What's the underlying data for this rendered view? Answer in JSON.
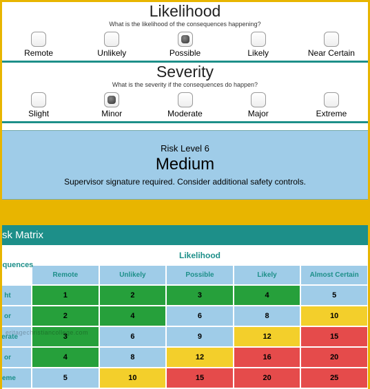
{
  "likelihood": {
    "title": "Likelihood",
    "subtitle": "What is the likelihood of the consequences happening?",
    "options": [
      "Remote",
      "Unlikely",
      "Possible",
      "Likely",
      "Near Certain"
    ],
    "selected_index": 2
  },
  "severity": {
    "title": "Severity",
    "subtitle": "What is the severity if the consequences do happen?",
    "options": [
      "Slight",
      "Minor",
      "Moderate",
      "Major",
      "Extreme"
    ],
    "selected_index": 1
  },
  "result": {
    "level_label": "Risk Level  6",
    "name": "Medium",
    "description": "Supervisor signature required. Consider additional safety controls.",
    "background_color": "#9fcce8"
  },
  "matrix": {
    "title": "sk Matrix",
    "col_group_label": "Likelihood",
    "row_group_label": "onsequences",
    "columns": [
      "Remote",
      "Unlikely",
      "Possible",
      "Likely",
      "Almost Certain"
    ],
    "rows": [
      "ht",
      "or",
      "derate",
      "or",
      "reme"
    ],
    "cells": [
      [
        1,
        2,
        3,
        4,
        5
      ],
      [
        2,
        4,
        6,
        8,
        10
      ],
      [
        3,
        6,
        9,
        12,
        15
      ],
      [
        4,
        8,
        12,
        16,
        20
      ],
      [
        5,
        10,
        15,
        20,
        25
      ]
    ],
    "cell_colors": [
      [
        "#26a03b",
        "#26a03b",
        "#26a03b",
        "#26a03b",
        "#9fcce8"
      ],
      [
        "#26a03b",
        "#26a03b",
        "#9fcce8",
        "#9fcce8",
        "#f3cf2b"
      ],
      [
        "#26a03b",
        "#9fcce8",
        "#9fcce8",
        "#f3cf2b",
        "#e54b4b"
      ],
      [
        "#26a03b",
        "#9fcce8",
        "#f3cf2b",
        "#e54b4b",
        "#e54b4b"
      ],
      [
        "#9fcce8",
        "#f3cf2b",
        "#e54b4b",
        "#e54b4b",
        "#e54b4b"
      ]
    ],
    "header_bg": "#9fcce8",
    "header_fg": "#1d8f89",
    "title_bg": "#1d8f89"
  },
  "watermark": "eritagechristiancollege.com",
  "frame_color": "#e8b500",
  "divider_color": "#1d8f89"
}
